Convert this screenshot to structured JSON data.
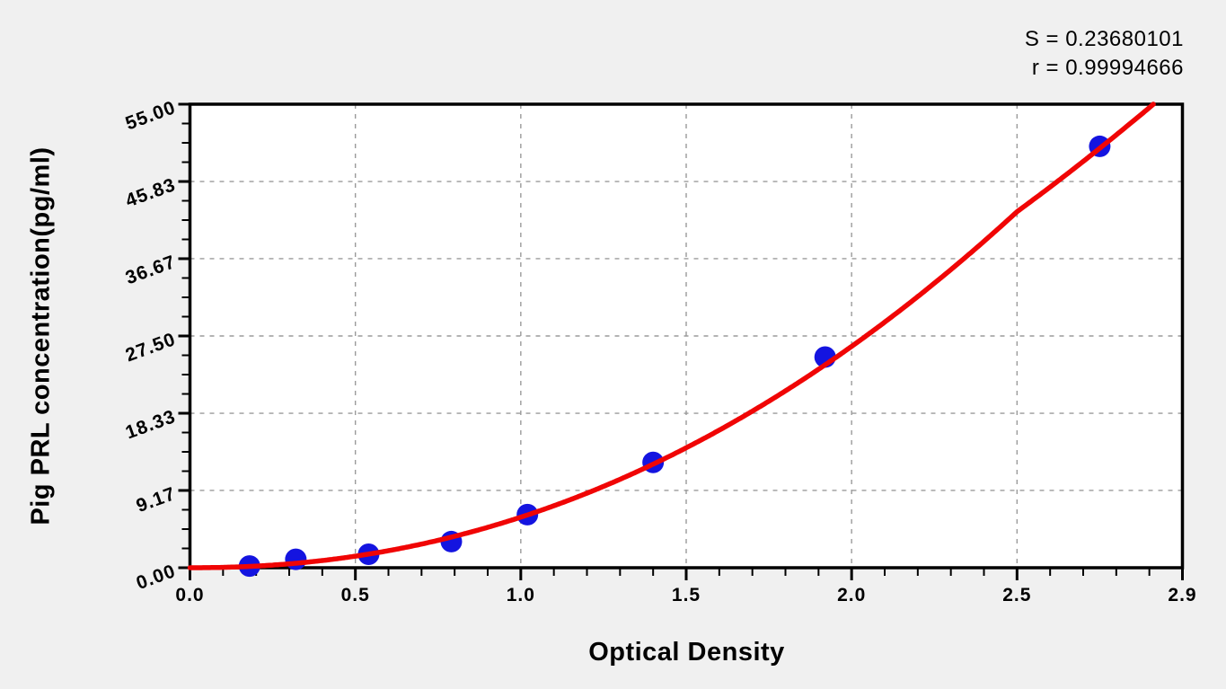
{
  "chart_data": {
    "type": "scatter",
    "title": "",
    "xlabel": "Optical Density",
    "ylabel": "Pig PRL concentration(pg/ml)",
    "annotations": [
      "S = 0.23680101",
      "r = 0.99994666"
    ],
    "x_axis": {
      "tick_labels": [
        "0.0",
        "0.5",
        "1.0",
        "1.5",
        "2.0",
        "2.5",
        "2.9"
      ],
      "tick_values": [
        0,
        0.5,
        1.0,
        1.5,
        2.0,
        2.5,
        2.9
      ],
      "minor_divisions": 5,
      "note": "major ticks equally spaced in pixels; last interval spans 2.5-2.9"
    },
    "y_axis": {
      "tick_labels": [
        "0.00",
        "9.17",
        "18.33",
        "27.50",
        "36.67",
        "45.83",
        "55.00"
      ],
      "tick_values": [
        0,
        9.17,
        18.33,
        27.5,
        36.67,
        45.83,
        55.0
      ],
      "range": [
        0,
        55
      ],
      "minor_divisions": 4
    },
    "grid": "dashed major gridlines",
    "legend": "none",
    "points": [
      {
        "od": 0.18,
        "conc": 0.2
      },
      {
        "od": 0.32,
        "conc": 1.0
      },
      {
        "od": 0.54,
        "conc": 1.6
      },
      {
        "od": 0.79,
        "conc": 3.1
      },
      {
        "od": 1.02,
        "conc": 6.3
      },
      {
        "od": 1.4,
        "conc": 12.5
      },
      {
        "od": 1.92,
        "conc": 25.0
      },
      {
        "od": 2.7,
        "conc": 50.0
      }
    ],
    "fit_curve": {
      "model": "power",
      "a": 6.0,
      "b": 2.13,
      "x_min": 0,
      "x_max": 2.9,
      "y_max": 55
    },
    "colors": {
      "curve": "#f00505",
      "points": "#1414e0",
      "grid": "#9a9a9a",
      "axis": "#000000",
      "plot_bg": "#ffffff",
      "page_bg": "#f0f0f0"
    }
  }
}
